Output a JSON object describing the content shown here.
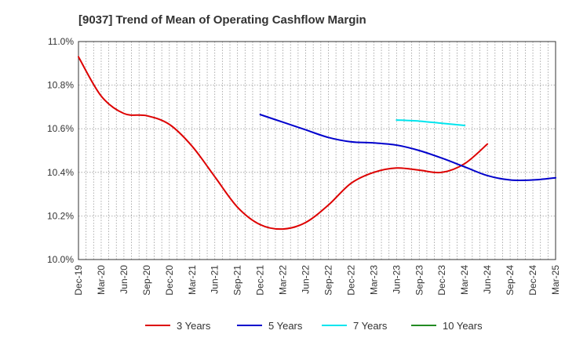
{
  "chart_data": {
    "type": "line",
    "title": "[9037]  Trend of Mean of Operating Cashflow Margin",
    "xlabel": "",
    "ylabel": "",
    "x_ticks": [
      "Dec-19",
      "Mar-20",
      "Jun-20",
      "Sep-20",
      "Dec-20",
      "Mar-21",
      "Jun-21",
      "Sep-21",
      "Dec-21",
      "Mar-22",
      "Jun-22",
      "Sep-22",
      "Dec-22",
      "Mar-23",
      "Jun-23",
      "Sep-23",
      "Dec-23",
      "Mar-24",
      "Jun-24",
      "Sep-24",
      "Dec-24",
      "Mar-25"
    ],
    "y_ticks": [
      "10.0%",
      "10.2%",
      "10.4%",
      "10.6%",
      "10.8%",
      "11.0%"
    ],
    "ylim": [
      10.0,
      11.0
    ],
    "grid": true,
    "legend_position": "bottom",
    "series": [
      {
        "name": "3 Years",
        "color": "#dd0000",
        "start_index": 0,
        "values": [
          10.93,
          10.75,
          10.67,
          10.66,
          10.62,
          10.52,
          10.38,
          10.24,
          10.16,
          10.14,
          10.17,
          10.25,
          10.35,
          10.4,
          10.42,
          10.41,
          10.4,
          10.44,
          10.53
        ]
      },
      {
        "name": "5 Years",
        "color": "#0000cc",
        "start_index": 8,
        "values": [
          10.665,
          10.63,
          10.595,
          10.56,
          10.54,
          10.535,
          10.525,
          10.5,
          10.465,
          10.425,
          10.385,
          10.365,
          10.365,
          10.375
        ]
      },
      {
        "name": "7 Years",
        "color": "#00e5ee",
        "start_index": 14,
        "values": [
          10.64,
          10.635,
          10.625,
          10.615
        ]
      },
      {
        "name": "10 Years",
        "color": "#228b22",
        "start_index": 0,
        "values": []
      }
    ]
  }
}
